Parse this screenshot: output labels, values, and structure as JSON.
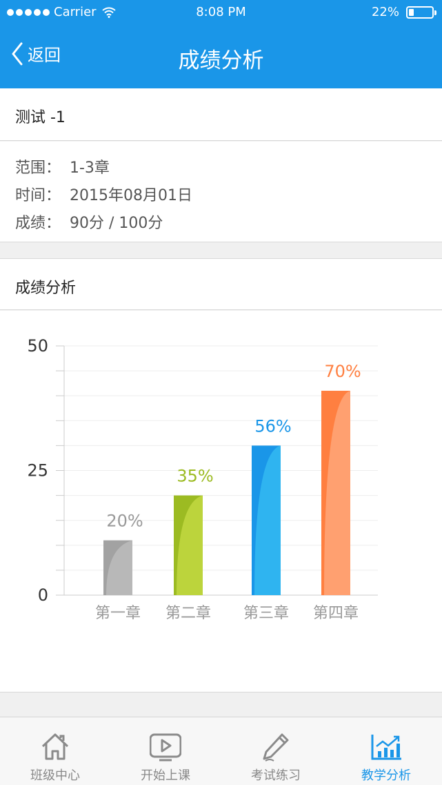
{
  "status_bar": {
    "carrier": "Carrier",
    "time": "8:08 PM",
    "battery": "22%",
    "battery_level": 0.22
  },
  "nav": {
    "back_label": "返回",
    "title": "成绩分析"
  },
  "test": {
    "name": "测试 -1",
    "fields": [
      {
        "key": "范围：",
        "value": "1-3章"
      },
      {
        "key": "时间：",
        "value": "2015年08月01日"
      },
      {
        "key": "成绩：",
        "value": "90分 / 100分"
      }
    ]
  },
  "analysis": {
    "header": "成绩分析"
  },
  "chart_data": {
    "type": "bar",
    "categories": [
      "第一章",
      "第二章",
      "第三章",
      "第四章"
    ],
    "values": [
      11,
      20,
      30,
      41
    ],
    "data_labels": [
      "20%",
      "35%",
      "56%",
      "70%"
    ],
    "ylim": [
      0,
      50
    ],
    "yticks": [
      "0",
      "25",
      "50"
    ],
    "ytick_values": [
      0,
      25,
      50
    ],
    "grid": true,
    "colors": [
      {
        "dark": "#a2a2a2",
        "light": "#b8b8b8",
        "label": "#999999"
      },
      {
        "dark": "#9cbb22",
        "light": "#bcd43c",
        "label": "#9cbb22"
      },
      {
        "dark": "#1a96e8",
        "light": "#2fb4f0",
        "label": "#1a96e8"
      },
      {
        "dark": "#ff7f40",
        "light": "#ffa070",
        "label": "#ff7f40"
      }
    ]
  },
  "tabs": [
    {
      "label": "班级中心",
      "icon": "home-icon",
      "active": false
    },
    {
      "label": "开始上课",
      "icon": "play-icon",
      "active": false
    },
    {
      "label": "考试练习",
      "icon": "pencil-icon",
      "active": false
    },
    {
      "label": "教学分析",
      "icon": "chart-icon",
      "active": true
    }
  ],
  "colors": {
    "primary": "#1a96e8",
    "tab_inactive": "#888888"
  }
}
